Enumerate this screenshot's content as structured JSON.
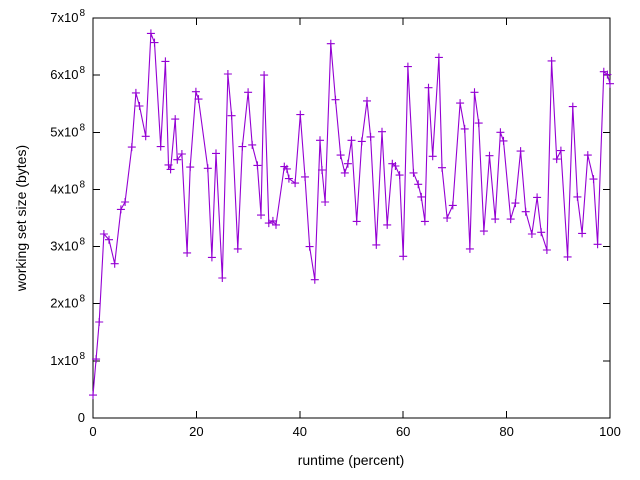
{
  "chart_data": {
    "type": "line",
    "title": "",
    "xlabel": "runtime (percent)",
    "ylabel": "working set size (bytes)",
    "xlim": [
      0,
      100
    ],
    "ylim": [
      0,
      700000000.0
    ],
    "xticks": [
      0,
      20,
      40,
      60,
      80,
      100
    ],
    "yticks": [
      {
        "value": 0,
        "label": "0",
        "exp": ""
      },
      {
        "value": 100000000.0,
        "label": "1x10",
        "exp": "8"
      },
      {
        "value": 200000000.0,
        "label": "2x10",
        "exp": "8"
      },
      {
        "value": 300000000.0,
        "label": "3x10",
        "exp": "8"
      },
      {
        "value": 400000000.0,
        "label": "4x10",
        "exp": "8"
      },
      {
        "value": 500000000.0,
        "label": "5x10",
        "exp": "8"
      },
      {
        "value": 600000000.0,
        "label": "6x10",
        "exp": "8"
      },
      {
        "value": 700000000.0,
        "label": "7x10",
        "exp": "8"
      }
    ],
    "grid": false,
    "legend": "none",
    "marker": "plus",
    "line_color": "#9400d3",
    "axis_color": "#000000",
    "background_color": "#ffffff",
    "x": [
      0.0,
      0.6,
      1.2,
      2.1,
      3.1,
      4.2,
      5.4,
      6.2,
      7.5,
      8.3,
      9.0,
      10.2,
      11.2,
      11.9,
      13.1,
      14.0,
      14.6,
      15.0,
      15.9,
      16.3,
      17.2,
      18.2,
      18.8,
      19.9,
      20.4,
      22.2,
      23.0,
      23.8,
      25.0,
      26.1,
      26.8,
      28.0,
      28.9,
      30.0,
      30.8,
      31.8,
      32.5,
      33.1,
      34.0,
      34.8,
      35.4,
      37.0,
      37.5,
      37.9,
      39.1,
      40.1,
      41.0,
      41.9,
      42.9,
      43.9,
      44.3,
      44.9,
      46.0,
      46.9,
      47.9,
      48.7,
      49.3,
      50.0,
      51.0,
      52.0,
      53.0,
      53.7,
      54.8,
      55.9,
      56.9,
      57.9,
      58.5,
      59.3,
      60.0,
      60.9,
      62.0,
      62.9,
      63.5,
      64.2,
      64.9,
      65.7,
      66.9,
      67.5,
      68.5,
      69.6,
      71.0,
      71.9,
      72.9,
      73.8,
      74.6,
      75.6,
      76.7,
      77.8,
      78.8,
      79.4,
      80.8,
      81.7,
      82.7,
      83.7,
      84.9,
      85.9,
      86.7,
      87.8,
      88.7,
      89.7,
      90.5,
      91.8,
      92.8,
      93.7,
      94.6,
      95.7,
      96.8,
      97.6,
      98.8,
      99.5,
      100.0
    ],
    "y_bytes": [
      40000000.0,
      103000000.0,
      168000000.0,
      322000000.0,
      312000000.0,
      270000000.0,
      365000000.0,
      378000000.0,
      474000000.0,
      569000000.0,
      546000000.0,
      493000000.0,
      673000000.0,
      657000000.0,
      475000000.0,
      624000000.0,
      443000000.0,
      435000000.0,
      523000000.0,
      452000000.0,
      462000000.0,
      289000000.0,
      439000000.0,
      571000000.0,
      558000000.0,
      437000000.0,
      281000000.0,
      463000000.0,
      245000000.0,
      602000000.0,
      529000000.0,
      296000000.0,
      475000000.0,
      570000000.0,
      478000000.0,
      442000000.0,
      355000000.0,
      600000000.0,
      341000000.0,
      345000000.0,
      338000000.0,
      440000000.0,
      436000000.0,
      419000000.0,
      411000000.0,
      531000000.0,
      422000000.0,
      300000000.0,
      242000000.0,
      486000000.0,
      434000000.0,
      378000000.0,
      655000000.0,
      557000000.0,
      460000000.0,
      429000000.0,
      445000000.0,
      486000000.0,
      344000000.0,
      484000000.0,
      555000000.0,
      492000000.0,
      303000000.0,
      501000000.0,
      338000000.0,
      445000000.0,
      441000000.0,
      425000000.0,
      283000000.0,
      615000000.0,
      429000000.0,
      409000000.0,
      387000000.0,
      344000000.0,
      578000000.0,
      458000000.0,
      631000000.0,
      438000000.0,
      350000000.0,
      372000000.0,
      551000000.0,
      506000000.0,
      296000000.0,
      570000000.0,
      516000000.0,
      327000000.0,
      459000000.0,
      348000000.0,
      500000000.0,
      485000000.0,
      348000000.0,
      376000000.0,
      467000000.0,
      361000000.0,
      322000000.0,
      386000000.0,
      325000000.0,
      294000000.0,
      625000000.0,
      453000000.0,
      468000000.0,
      282000000.0,
      545000000.0,
      387000000.0,
      323000000.0,
      460000000.0,
      418000000.0,
      304000000.0,
      606000000.0,
      601000000.0,
      585000000.0
    ]
  }
}
